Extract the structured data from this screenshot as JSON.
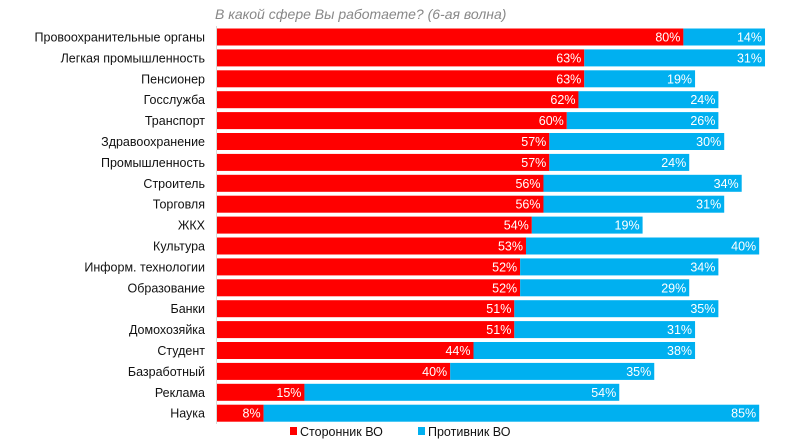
{
  "chart_data": {
    "type": "bar",
    "orientation": "horizontal",
    "stacked": true,
    "title": "В какой сфере Вы работаете? (6-ая волна)",
    "categories": [
      "Провоохранительные органы",
      "Легкая промышленность",
      "Пенсионер",
      "Госслужба",
      "Транспорт",
      "Здравоохранение",
      "Промышленность",
      "Строитель",
      "Торговля",
      "ЖКХ",
      "Культура",
      "Информ. технологии",
      "Образование",
      "Банки",
      "Домохозяйка",
      "Студент",
      "Базработный",
      "Реклама",
      "Наука"
    ],
    "series": [
      {
        "name": "Сторонник ВО",
        "color": "#ff0000",
        "values": [
          80,
          63,
          63,
          62,
          60,
          57,
          57,
          56,
          56,
          54,
          53,
          52,
          52,
          51,
          51,
          44,
          40,
          15,
          8
        ]
      },
      {
        "name": "Противник ВО",
        "color": "#00b0f0",
        "values": [
          14,
          31,
          19,
          24,
          26,
          30,
          24,
          34,
          31,
          19,
          40,
          34,
          29,
          35,
          31,
          38,
          35,
          54,
          85
        ]
      }
    ],
    "value_suffix": "%",
    "legend": "bottom",
    "grid": false
  }
}
